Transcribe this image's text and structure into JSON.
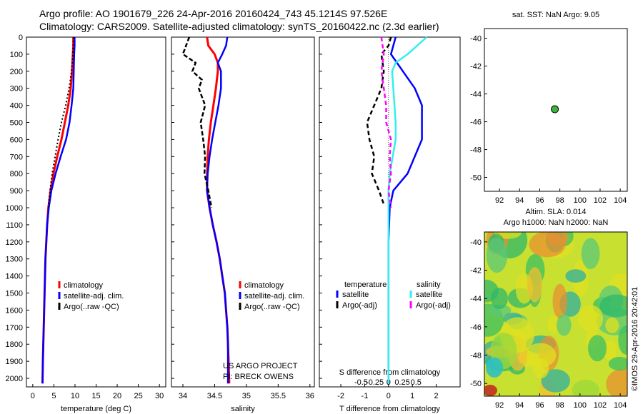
{
  "header": {
    "line1": "Argo profile: AO 1901679_226 24-Apr-2016 20160424_743 45.1214S 97.526E",
    "line2": "Climatology: CARS2009. Satellite-adjusted climatology: synTS_20160422.nc (2.3d earlier)"
  },
  "depth_ticks": [
    "0",
    "100",
    "200",
    "300",
    "400",
    "500",
    "600",
    "700",
    "800",
    "900",
    "1000",
    "1100",
    "1200",
    "1300",
    "1400",
    "1500",
    "1600",
    "1700",
    "1800",
    "1900",
    "2000"
  ],
  "depth_max": 2050,
  "panels": [
    {
      "id": "temperature",
      "xlabel": "temperature (deg C)",
      "xlim": [
        -1.5,
        31.5
      ],
      "xticks": [
        0,
        5,
        10,
        15,
        20,
        25,
        30
      ],
      "xtick_labels": [
        "0",
        "5",
        "10",
        "15",
        "20",
        "25",
        "30"
      ],
      "legend": [
        "climatology",
        "satellite-adj. clim.",
        "Argo(..raw -QC)"
      ]
    },
    {
      "id": "salinity",
      "xlabel": "salinity",
      "xlim": [
        33.82,
        36.07
      ],
      "xticks": [
        34,
        34.5,
        35,
        35.5,
        36
      ],
      "xtick_labels": [
        "34",
        "34.5",
        "35",
        "35.5",
        "36"
      ],
      "legend": [
        "climatology",
        "satellite-adj. clim.",
        "Argo(..raw -QC)"
      ],
      "note1": "US ARGO PROJECT",
      "note2": "PI: BRECK OWENS"
    },
    {
      "id": "difference",
      "xlabel": "T difference from climatology",
      "xlim": [
        -2.9,
        3.0
      ],
      "xticks": [
        -2,
        -1,
        0,
        1,
        2
      ],
      "xtick_labels": [
        "-2",
        "-1",
        "0",
        "1",
        "2"
      ],
      "top_label": "S difference from climatology",
      "s_ticks": [
        "-0.5",
        "-0.25",
        "0",
        "0.25",
        "0.5"
      ],
      "legend_temp_title": "temperature",
      "legend_sal_title": "salinity",
      "legend": [
        "satellite",
        "Argo(-adj)",
        "satellite",
        "Argo(-adj)"
      ]
    }
  ],
  "sst_map": {
    "title": "sat. SST: NaN Argo: 9.05",
    "lat_ticks": [
      "-40",
      "-42",
      "-44",
      "-46",
      "-48",
      "-50"
    ],
    "lon_ticks": [
      "92",
      "94",
      "96",
      "98",
      "100",
      "102",
      "104"
    ],
    "marker": {
      "lon": 97.5,
      "lat": -45.1
    },
    "marker_color": "#3cb43c"
  },
  "sla_map": {
    "title1": "Altim. SLA: 0.014",
    "title2": "Argo h1000: NaN h2000: NaN",
    "lat_ticks": [
      "-40",
      "-42",
      "-44",
      "-46",
      "-48",
      "-50"
    ],
    "lon_ticks": [
      "92",
      "94",
      "96",
      "98",
      "100",
      "102",
      "104"
    ]
  },
  "credit": "©IMOS 29-Apr-2016 20:42:01",
  "colors": {
    "clim": "#ff0000",
    "sat": "#0000ff",
    "argo": "#000000",
    "sal_sat": "#33eeee",
    "sal_argo": "#ff00ff"
  },
  "chart_data": [
    {
      "type": "line",
      "title": "",
      "xlabel": "temperature (deg C)",
      "ylabel": "",
      "xlim": [
        -1.5,
        31.5
      ],
      "ylim": [
        2050,
        0
      ],
      "series": [
        {
          "name": "climatology",
          "points": [
            [
              9.6,
              0
            ],
            [
              9.6,
              50
            ],
            [
              9.5,
              100
            ],
            [
              9.3,
              200
            ],
            [
              9.0,
              300
            ],
            [
              8.4,
              400
            ],
            [
              7.6,
              500
            ],
            [
              6.8,
              600
            ],
            [
              5.8,
              700
            ],
            [
              4.9,
              800
            ],
            [
              4.2,
              900
            ],
            [
              3.7,
              1000
            ],
            [
              3.4,
              1100
            ],
            [
              3.2,
              1200
            ],
            [
              3.0,
              1300
            ],
            [
              2.9,
              1400
            ],
            [
              2.8,
              1500
            ],
            [
              2.7,
              1600
            ],
            [
              2.6,
              1700
            ],
            [
              2.5,
              1800
            ],
            [
              2.4,
              1900
            ],
            [
              2.3,
              2030
            ]
          ]
        },
        {
          "name": "satellite-adj. clim.",
          "points": [
            [
              9.9,
              0
            ],
            [
              9.9,
              50
            ],
            [
              9.8,
              100
            ],
            [
              9.7,
              200
            ],
            [
              9.6,
              300
            ],
            [
              9.2,
              400
            ],
            [
              8.7,
              500
            ],
            [
              7.9,
              600
            ],
            [
              6.6,
              700
            ],
            [
              5.4,
              800
            ],
            [
              4.4,
              900
            ],
            [
              3.8,
              1000
            ],
            [
              3.4,
              1100
            ],
            [
              3.2,
              1200
            ],
            [
              3.0,
              1300
            ],
            [
              2.9,
              1400
            ],
            [
              2.8,
              1500
            ],
            [
              2.7,
              1600
            ],
            [
              2.6,
              1700
            ],
            [
              2.5,
              1800
            ],
            [
              2.4,
              1900
            ],
            [
              2.3,
              2030
            ]
          ]
        },
        {
          "name": "Argo(..raw -QC)",
          "points": [
            [
              9.7,
              0
            ],
            [
              9.6,
              50
            ],
            [
              9.5,
              100
            ],
            [
              9.2,
              200
            ],
            [
              8.6,
              300
            ],
            [
              7.8,
              400
            ],
            [
              6.8,
              500
            ],
            [
              6.0,
              600
            ],
            [
              5.3,
              700
            ],
            [
              4.6,
              800
            ],
            [
              4.1,
              900
            ],
            [
              3.7,
              1000
            ]
          ]
        }
      ]
    },
    {
      "type": "line",
      "title": "",
      "xlabel": "salinity",
      "ylabel": "",
      "xlim": [
        33.82,
        36.07
      ],
      "ylim": [
        2050,
        0
      ],
      "series": [
        {
          "name": "climatology",
          "points": [
            [
              34.38,
              0
            ],
            [
              34.4,
              50
            ],
            [
              34.5,
              100
            ],
            [
              34.55,
              150
            ],
            [
              34.55,
              200
            ],
            [
              34.52,
              300
            ],
            [
              34.48,
              400
            ],
            [
              34.44,
              500
            ],
            [
              34.41,
              600
            ],
            [
              34.39,
              700
            ],
            [
              34.38,
              800
            ],
            [
              34.38,
              900
            ],
            [
              34.42,
              1000
            ],
            [
              34.47,
              1100
            ],
            [
              34.53,
              1200
            ],
            [
              34.58,
              1300
            ],
            [
              34.62,
              1400
            ],
            [
              34.66,
              1500
            ],
            [
              34.68,
              1600
            ],
            [
              34.7,
              1700
            ],
            [
              34.71,
              1800
            ],
            [
              34.72,
              1900
            ],
            [
              34.73,
              2030
            ]
          ]
        },
        {
          "name": "satellite-adj. clim.",
          "points": [
            [
              34.7,
              0
            ],
            [
              34.68,
              50
            ],
            [
              34.62,
              100
            ],
            [
              34.55,
              150
            ],
            [
              34.6,
              200
            ],
            [
              34.6,
              300
            ],
            [
              34.56,
              400
            ],
            [
              34.51,
              500
            ],
            [
              34.46,
              600
            ],
            [
              34.42,
              700
            ],
            [
              34.39,
              800
            ],
            [
              34.38,
              900
            ],
            [
              34.42,
              1000
            ],
            [
              34.47,
              1100
            ],
            [
              34.53,
              1200
            ],
            [
              34.58,
              1300
            ],
            [
              34.62,
              1400
            ],
            [
              34.66,
              1500
            ],
            [
              34.68,
              1600
            ],
            [
              34.7,
              1700
            ],
            [
              34.71,
              1800
            ],
            [
              34.71,
              1900
            ],
            [
              34.71,
              2030
            ]
          ]
        },
        {
          "name": "Argo(..raw -QC)",
          "points": [
            [
              34.1,
              0
            ],
            [
              34.05,
              50
            ],
            [
              34.0,
              100
            ],
            [
              34.2,
              150
            ],
            [
              34.15,
              200
            ],
            [
              34.3,
              250
            ],
            [
              34.25,
              300
            ],
            [
              34.35,
              400
            ],
            [
              34.28,
              500
            ],
            [
              34.32,
              600
            ],
            [
              34.35,
              700
            ],
            [
              34.34,
              800
            ],
            [
              34.4,
              900
            ],
            [
              34.45,
              1000
            ]
          ]
        }
      ]
    },
    {
      "type": "line",
      "title": "",
      "xlabel": "T difference from climatology",
      "ylabel": "",
      "xlim": [
        -2.9,
        3.0
      ],
      "ylim": [
        2050,
        0
      ],
      "series": [
        {
          "name": "satellite",
          "points": [
            [
              0.3,
              0
            ],
            [
              0.1,
              100
            ],
            [
              0.6,
              200
            ],
            [
              1.1,
              300
            ],
            [
              1.4,
              400
            ],
            [
              1.4,
              600
            ],
            [
              0.8,
              800
            ],
            [
              0.2,
              900
            ],
            [
              0.05,
              1000
            ],
            [
              0,
              1200
            ],
            [
              0,
              2030
            ]
          ]
        },
        {
          "name": "Argo(-adj)",
          "points": [
            [
              0.1,
              0
            ],
            [
              0,
              50
            ],
            [
              -0.3,
              100
            ],
            [
              -0.2,
              200
            ],
            [
              -0.3,
              300
            ],
            [
              -0.6,
              400
            ],
            [
              -0.9,
              500
            ],
            [
              -0.8,
              600
            ],
            [
              -0.6,
              700
            ],
            [
              -0.7,
              800
            ],
            [
              -0.4,
              900
            ],
            [
              -0.2,
              980
            ]
          ]
        },
        {
          "name": "satellite",
          "points": [
            [
              1.6,
              0
            ],
            [
              1.2,
              50
            ],
            [
              0.8,
              100
            ],
            [
              0.3,
              150
            ],
            [
              0.15,
              200
            ],
            [
              0.2,
              300
            ],
            [
              0.3,
              500
            ],
            [
              0.3,
              600
            ],
            [
              0.05,
              800
            ],
            [
              0,
              900
            ],
            [
              0,
              1000
            ],
            [
              0,
              2030
            ]
          ]
        },
        {
          "name": "Argo(-adj)",
          "points": [
            [
              -0.3,
              0
            ],
            [
              -0.2,
              100
            ],
            [
              -0.3,
              200
            ],
            [
              -0.2,
              300
            ],
            [
              -0.1,
              400
            ],
            [
              -0.1,
              500
            ],
            [
              0.1,
              600
            ],
            [
              0.05,
              700
            ],
            [
              0.1,
              800
            ],
            [
              0.0,
              900
            ],
            [
              0.1,
              1000
            ]
          ]
        }
      ]
    }
  ]
}
